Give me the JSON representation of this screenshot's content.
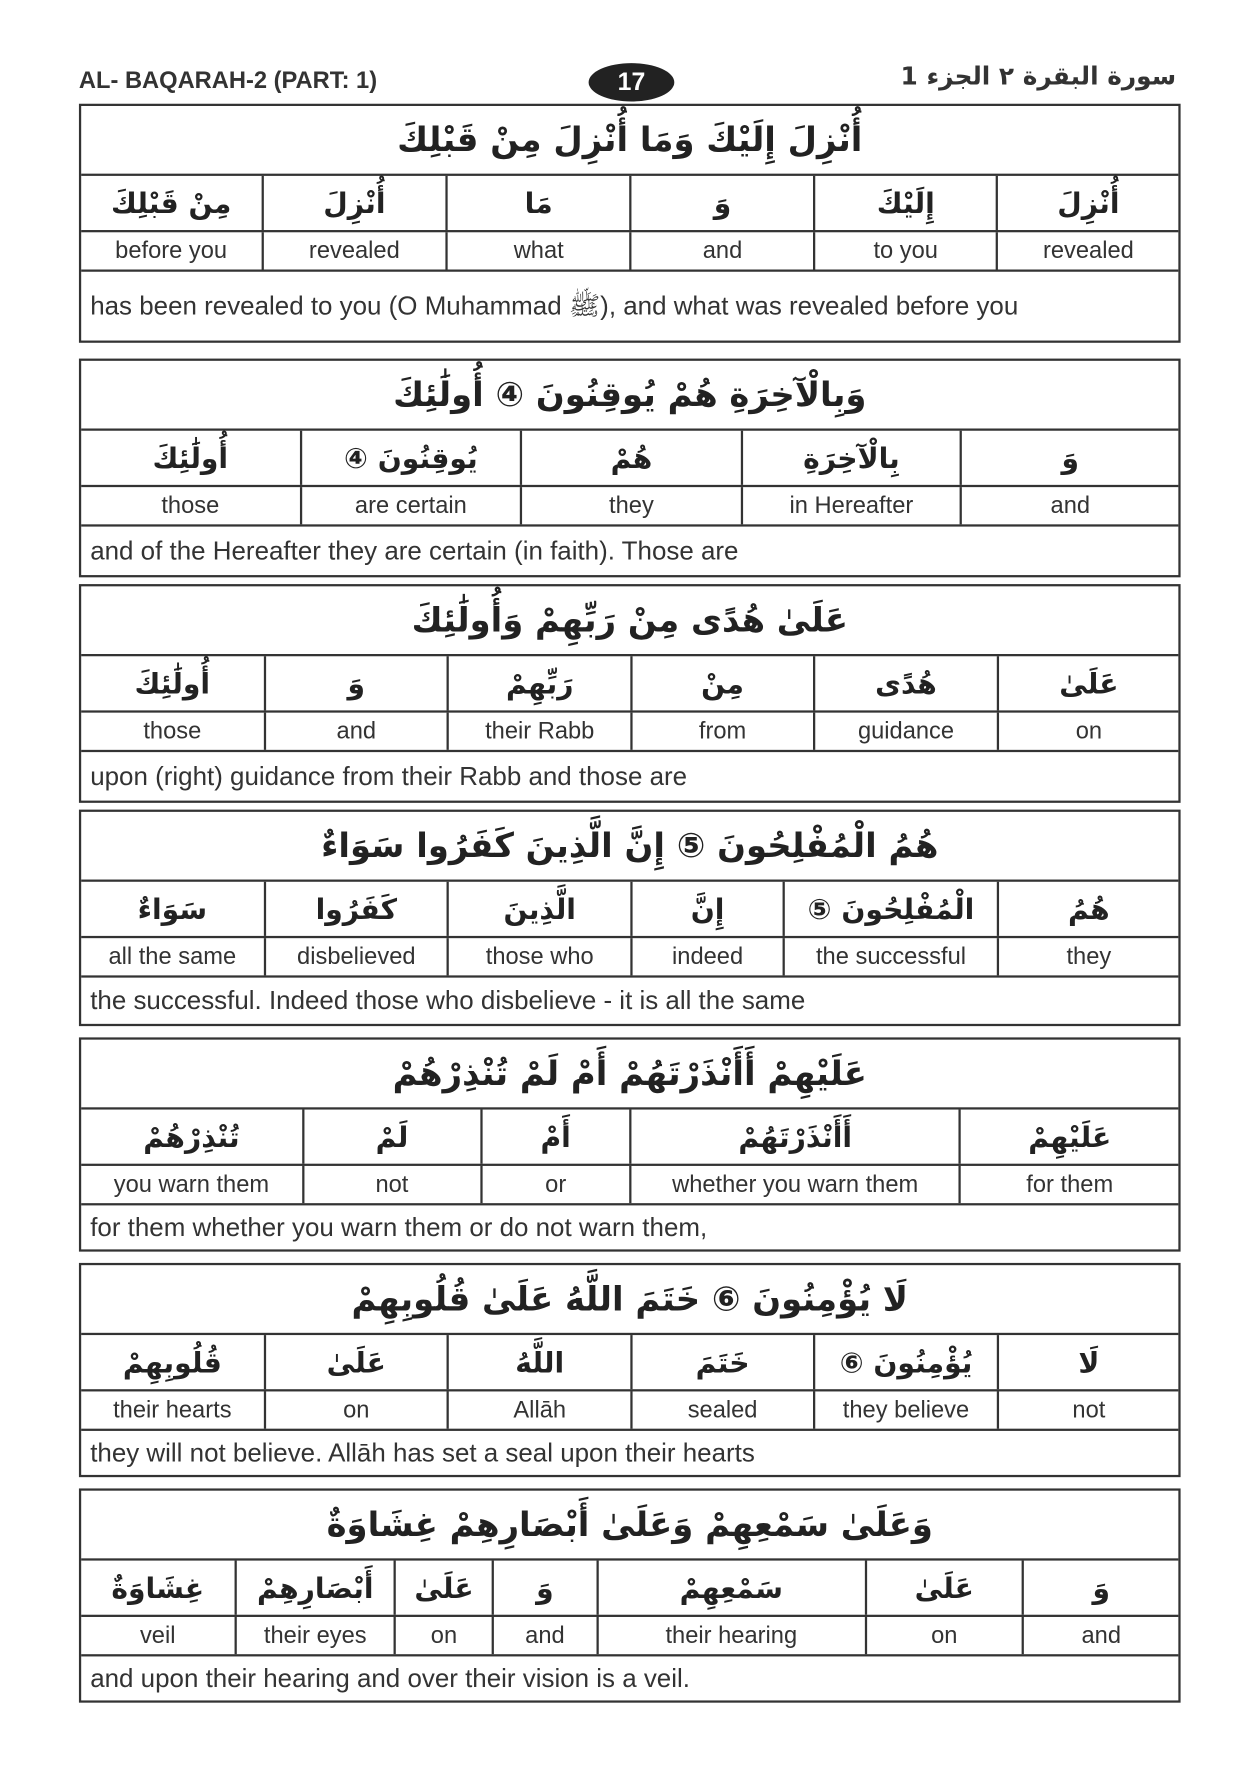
{
  "header": {
    "title": "AL- BAQARAH-2 (PART: 1)",
    "page_number": "17",
    "arabic_title": "سورة البقرة ٢ الجزء 1"
  },
  "blocks": [
    {
      "ayah": "أُنْزِلَ إِلَيْكَ وَمَا أُنْزِلَ مِنْ قَبْلِكَ",
      "words": [
        {
          "ar": "أُنْزِلَ",
          "en": "revealed"
        },
        {
          "ar": "إِلَيْكَ",
          "en": "to you"
        },
        {
          "ar": "وَ",
          "en": "and"
        },
        {
          "ar": "مَا",
          "en": "what"
        },
        {
          "ar": "أُنْزِلَ",
          "en": "revealed"
        },
        {
          "ar": "مِنْ قَبْلِكَ",
          "en": "before you"
        }
      ],
      "translation": "has been revealed to you (O Muhammad ﷺ), and what was revealed before you"
    },
    {
      "ayah": "وَبِالْآخِرَةِ هُمْ يُوقِنُونَ ④ أُولَٰئِكَ",
      "words": [
        {
          "ar": "وَ",
          "en": "and"
        },
        {
          "ar": "بِالْآخِرَةِ",
          "en": "in Hereafter"
        },
        {
          "ar": "هُمْ",
          "en": "they"
        },
        {
          "ar": "يُوقِنُونَ ④",
          "en": "are certain"
        },
        {
          "ar": "أُولَٰئِكَ",
          "en": "those"
        }
      ],
      "translation": "and of the Hereafter they are certain (in faith). Those are"
    },
    {
      "ayah": "عَلَىٰ هُدًى مِنْ رَبِّهِمْ وَأُولَٰئِكَ",
      "words": [
        {
          "ar": "عَلَىٰ",
          "en": "on"
        },
        {
          "ar": "هُدًى",
          "en": "guidance"
        },
        {
          "ar": "مِنْ",
          "en": "from"
        },
        {
          "ar": "رَبِّهِمْ",
          "en": "their Rabb"
        },
        {
          "ar": "وَ",
          "en": "and"
        },
        {
          "ar": "أُولَٰئِكَ",
          "en": "those"
        }
      ],
      "translation": "upon (right) guidance from their Rabb and those are"
    },
    {
      "ayah": "هُمُ الْمُفْلِحُونَ ⑤ إِنَّ الَّذِينَ كَفَرُوا سَوَاءٌ",
      "words": [
        {
          "ar": "هُمُ",
          "en": "they"
        },
        {
          "ar": "الْمُفْلِحُونَ ⑤",
          "en": "the successful"
        },
        {
          "ar": "إِنَّ",
          "en": "indeed"
        },
        {
          "ar": "الَّذِينَ",
          "en": "those who"
        },
        {
          "ar": "كَفَرُوا",
          "en": "disbelieved"
        },
        {
          "ar": "سَوَاءٌ",
          "en": "all the same"
        }
      ],
      "translation": "the successful. Indeed those who disbelieve - it is all the same"
    },
    {
      "ayah": "عَلَيْهِمْ أَأَنْذَرْتَهُمْ أَمْ لَمْ تُنْذِرْهُمْ",
      "words": [
        {
          "ar": "عَلَيْهِمْ",
          "en": "for them"
        },
        {
          "ar": "أَأَنْذَرْتَهُمْ",
          "en": "whether you warn them"
        },
        {
          "ar": "أَمْ",
          "en": "or"
        },
        {
          "ar": "لَمْ",
          "en": "not"
        },
        {
          "ar": "تُنْذِرْهُمْ",
          "en": "you warn them"
        }
      ],
      "translation": "for them whether you warn them or do not warn them,"
    },
    {
      "ayah": "لَا يُؤْمِنُونَ ⑥ خَتَمَ اللَّهُ عَلَىٰ قُلُوبِهِمْ",
      "words": [
        {
          "ar": "لَا",
          "en": "not"
        },
        {
          "ar": "يُؤْمِنُونَ ⑥",
          "en": "they believe"
        },
        {
          "ar": "خَتَمَ",
          "en": "sealed"
        },
        {
          "ar": "اللَّهُ",
          "en": "Allāh"
        },
        {
          "ar": "عَلَىٰ",
          "en": "on"
        },
        {
          "ar": "قُلُوبِهِمْ",
          "en": "their hearts"
        }
      ],
      "translation": "they will not believe. Allāh has set a seal upon their hearts"
    },
    {
      "ayah": "وَعَلَىٰ سَمْعِهِمْ وَعَلَىٰ أَبْصَارِهِمْ غِشَاوَةٌ",
      "words": [
        {
          "ar": "وَ",
          "en": "and"
        },
        {
          "ar": "عَلَىٰ",
          "en": "on"
        },
        {
          "ar": "سَمْعِهِمْ",
          "en": "their hearing"
        },
        {
          "ar": "وَ",
          "en": "and"
        },
        {
          "ar": "عَلَىٰ",
          "en": "on"
        },
        {
          "ar": "أَبْصَارِهِمْ",
          "en": "their eyes"
        },
        {
          "ar": "غِشَاوَةٌ",
          "en": "veil"
        }
      ],
      "translation": "and upon their hearing and over their vision is a veil."
    }
  ]
}
